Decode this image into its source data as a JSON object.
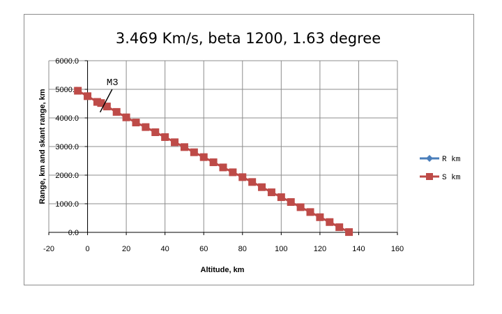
{
  "chart_data": {
    "type": "line",
    "title": "3.469 Km/s, beta 1200, 1.63 degree",
    "xlabel": "Altitude, km",
    "ylabel": "Range, km and skant range, km",
    "xlim": [
      -20,
      160
    ],
    "ylim": [
      0,
      6000
    ],
    "x_ticks": [
      "-20",
      "0",
      "20",
      "40",
      "60",
      "80",
      "100",
      "120",
      "140",
      "160"
    ],
    "y_ticks": [
      "0.0",
      "1000.0",
      "2000.0",
      "3000.0",
      "4000.0",
      "5000.0",
      "6000.0"
    ],
    "grid": true,
    "legend_position": "right",
    "series": [
      {
        "name": "R km",
        "color": "#4a7ebb",
        "marker": "diamond",
        "x": [],
        "y": []
      },
      {
        "name": "S km",
        "color": "#be4b48",
        "marker": "square",
        "x": [
          -5,
          0,
          5,
          7,
          10,
          15,
          20,
          25,
          30,
          35,
          40,
          45,
          50,
          55,
          60,
          65,
          70,
          75,
          80,
          85,
          90,
          95,
          100,
          105,
          110,
          115,
          120,
          125,
          130,
          135
        ],
        "y": [
          4950,
          4760,
          4560,
          4520,
          4400,
          4210,
          4020,
          3840,
          3680,
          3500,
          3330,
          3150,
          2980,
          2800,
          2630,
          2450,
          2270,
          2100,
          1930,
          1760,
          1580,
          1400,
          1230,
          1060,
          880,
          710,
          530,
          360,
          180,
          10
        ]
      }
    ],
    "annotations": [
      {
        "text": "M3",
        "x": 12,
        "y": 5050
      }
    ]
  }
}
